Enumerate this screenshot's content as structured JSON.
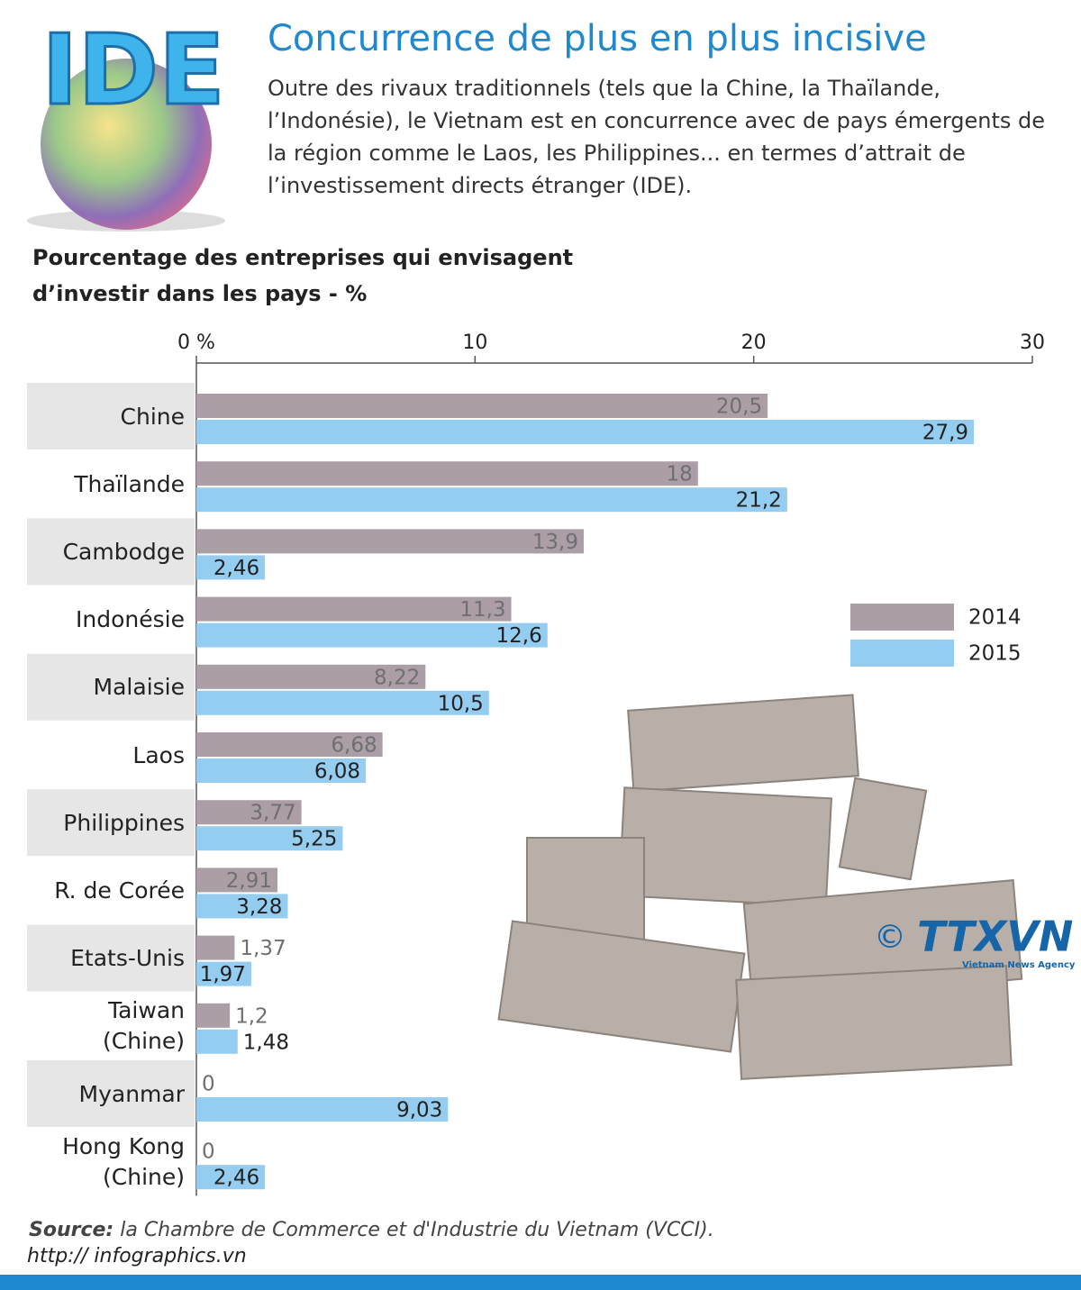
{
  "header": {
    "logo": "IDE",
    "title": "Concurrence de plus en plus incisive",
    "description": "Outre des rivaux traditionnels (tels que la Chine, la Thaïlande, l’Indonésie), le Vietnam est en concurrence avec de pays émergents de la région comme le Laos, les Philippines... en termes d’attrait de l’investissement directs étranger (IDE)."
  },
  "chart_data": {
    "type": "bar",
    "orientation": "horizontal",
    "title": "Pourcentage des entreprises qui envisagent d’investir dans les pays - %",
    "categories": [
      "Chine",
      "Thaïlande",
      "Cambodge",
      "Indonésie",
      "Malaisie",
      "Laos",
      "Philippines",
      "R. de Corée",
      "Etats-Unis",
      "Taiwan (Chine)",
      "Myanmar",
      "Hong Kong (Chine)"
    ],
    "series": [
      {
        "name": "2014",
        "color": "#ab9ea6",
        "values": [
          20.5,
          18,
          13.9,
          11.3,
          8.22,
          6.68,
          3.77,
          2.91,
          1.37,
          1.2,
          0,
          0
        ],
        "value_labels": [
          "20,5",
          "18",
          "13,9",
          "11,3",
          "8,22",
          "6,68",
          "3,77",
          "2,91",
          "1,37",
          "1,2",
          "0",
          "0"
        ]
      },
      {
        "name": "2015",
        "color": "#94cdf0",
        "values": [
          27.9,
          21.2,
          2.46,
          12.6,
          10.5,
          6.08,
          5.25,
          3.28,
          1.97,
          1.48,
          9.03,
          2.46
        ],
        "value_labels": [
          "27,9",
          "21,2",
          "2,46",
          "12,6",
          "10,5",
          "6,08",
          "5,25",
          "3,28",
          "1,97",
          "1,48",
          "9,03",
          "2,46"
        ]
      }
    ],
    "xlim": [
      0,
      30
    ],
    "xticks": [
      {
        "value": 0,
        "label": "0 %"
      },
      10,
      20,
      30
    ],
    "legend": "right"
  },
  "source_label": "Source:",
  "source": "la Chambre de Commerce et d'Industrie du Vietnam (VCCI).",
  "footer": {
    "url": "http:// infographics.vn",
    "copyright": "©",
    "agency": "TTXVN",
    "agency_sub": "Vietnam News Agency"
  }
}
